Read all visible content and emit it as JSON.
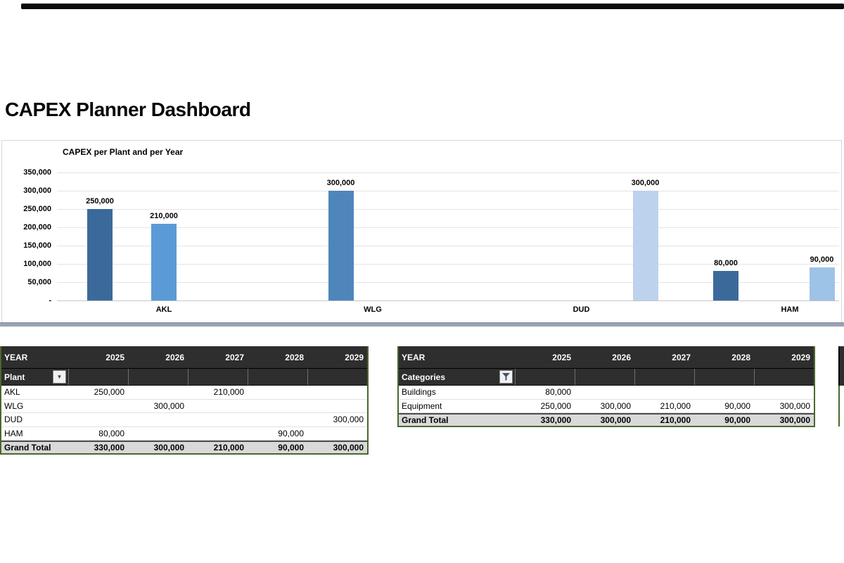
{
  "page": {
    "title": "CAPEX Planner Dashboard"
  },
  "chart_data": {
    "type": "bar",
    "title": "CAPEX per Plant and per Year",
    "categories": [
      "AKL",
      "WLG",
      "DUD",
      "HAM"
    ],
    "series": [
      {
        "name": "2025",
        "color": "#3b6a9a",
        "values": [
          250000,
          null,
          null,
          80000
        ]
      },
      {
        "name": "2026",
        "color": "#4e86bc",
        "values": [
          null,
          300000,
          null,
          null
        ]
      },
      {
        "name": "2027",
        "color": "#5b9bd5",
        "values": [
          210000,
          null,
          null,
          null
        ]
      },
      {
        "name": "2028",
        "color": "#9dc3e6",
        "values": [
          null,
          null,
          null,
          90000
        ]
      },
      {
        "name": "2029",
        "color": "#bdd2ec",
        "values": [
          null,
          null,
          300000,
          null
        ]
      }
    ],
    "ylim": [
      0,
      350000
    ],
    "y_tick_step": 50000,
    "y_tick_labels": [
      "-",
      "50,000",
      "100,000",
      "150,000",
      "200,000",
      "250,000",
      "300,000",
      "350,000"
    ],
    "data_labels": true,
    "gridlines": true,
    "legend": "none",
    "xlabel": "",
    "ylabel": ""
  },
  "tables": {
    "left": {
      "year_header": "YEAR",
      "years": [
        "2025",
        "2026",
        "2027",
        "2028",
        "2029"
      ],
      "row_field": "Plant",
      "filter_icon": "chevron-down-icon",
      "rows": [
        {
          "label": "AKL",
          "values": [
            "250,000",
            "",
            "210,000",
            "",
            ""
          ]
        },
        {
          "label": "WLG",
          "values": [
            "",
            "300,000",
            "",
            "",
            ""
          ]
        },
        {
          "label": "DUD",
          "values": [
            "",
            "",
            "",
            "",
            "300,000"
          ]
        },
        {
          "label": "HAM",
          "values": [
            "80,000",
            "",
            "",
            "90,000",
            ""
          ]
        }
      ],
      "grand_total": {
        "label": "Grand Total",
        "values": [
          "330,000",
          "300,000",
          "210,000",
          "90,000",
          "300,000"
        ]
      }
    },
    "right": {
      "year_header": "YEAR",
      "years": [
        "2025",
        "2026",
        "2027",
        "2028",
        "2029"
      ],
      "row_field": "Categories",
      "filter_icon": "funnel-filter-icon",
      "rows": [
        {
          "label": "Buildings",
          "values": [
            "80,000",
            "",
            "",
            "",
            ""
          ]
        },
        {
          "label": "Equipment",
          "values": [
            "250,000",
            "300,000",
            "210,000",
            "90,000",
            "300,000"
          ]
        }
      ],
      "grand_total": {
        "label": "Grand Total",
        "values": [
          "330,000",
          "300,000",
          "210,000",
          "90,000",
          "300,000"
        ]
      }
    }
  }
}
